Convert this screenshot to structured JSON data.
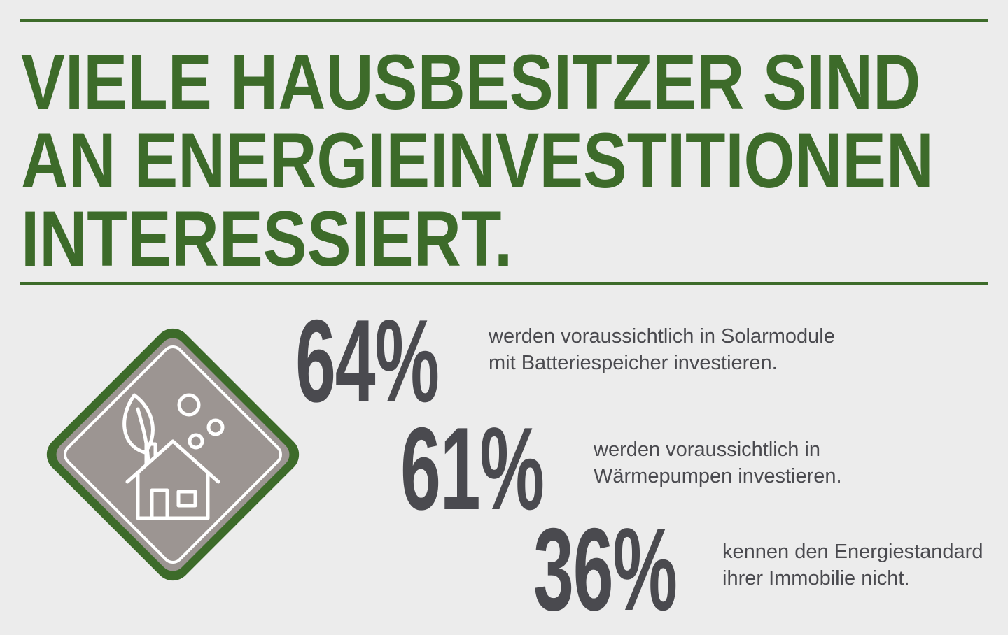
{
  "headline": {
    "line1": "VIELE HAUSBESITZER SIND",
    "line2": "AN ENERGIEINVESTITIONEN",
    "line3": "INTERESSIERT."
  },
  "icon": "eco-house-icon",
  "colors": {
    "accent": "#3d6b2a",
    "stat_text": "#4a4a4f",
    "badge_fill": "#9c9592",
    "background": "#ececec"
  },
  "stats": [
    {
      "value": "64%",
      "line1": "werden voraussichtlich in Solarmodule",
      "line2": "mit Batteriespeicher investieren."
    },
    {
      "value": "61%",
      "line1": "werden voraussichtlich in",
      "line2": "Wärmepumpen investieren."
    },
    {
      "value": "36%",
      "line1": "kennen den Energiestandard",
      "line2": "ihrer Immobilie nicht."
    }
  ]
}
